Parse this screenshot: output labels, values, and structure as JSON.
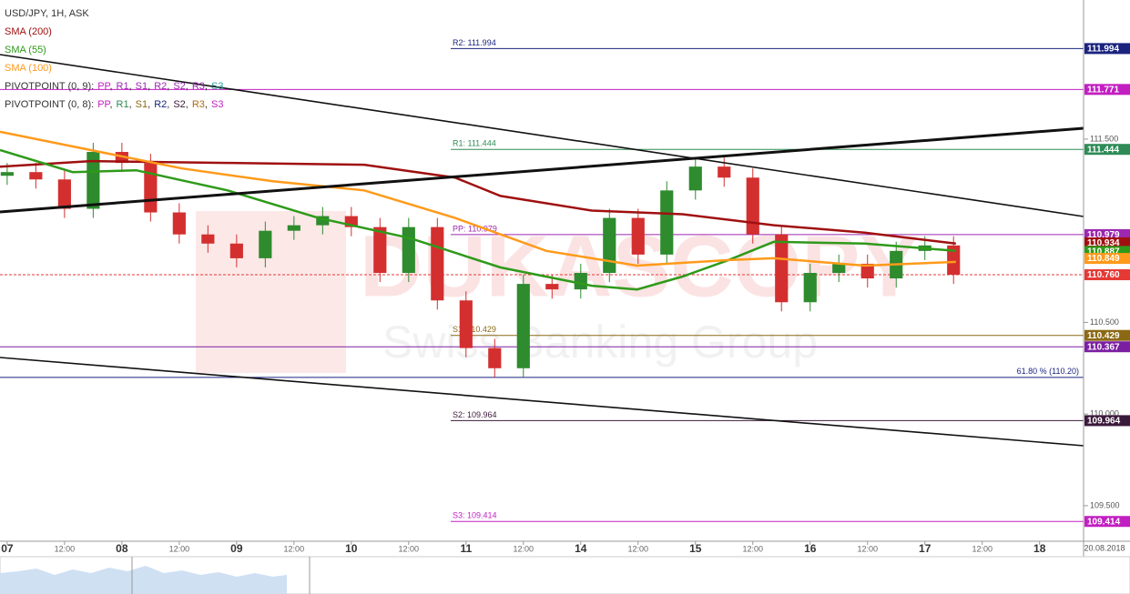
{
  "chart_data": {
    "type": "candlestick",
    "title": "USD/JPY, 1H, ASK",
    "watermark": {
      "brand": "DUKASCOPY",
      "tagline": "Swiss Banking Group"
    },
    "x": [
      0,
      6,
      12,
      18,
      24,
      30,
      36,
      42,
      48,
      54,
      60,
      66,
      72,
      78,
      84,
      90,
      96,
      102,
      108,
      114,
      120,
      126,
      132,
      138,
      144,
      150,
      156,
      162,
      168,
      174,
      180,
      186,
      192,
      198
    ],
    "open": [
      111.3,
      111.32,
      111.28,
      111.12,
      111.43,
      111.37,
      111.1,
      110.98,
      110.93,
      110.85,
      111.0,
      111.03,
      111.08,
      111.02,
      110.77,
      111.02,
      110.62,
      110.36,
      110.25,
      110.71,
      110.68,
      110.77,
      111.07,
      110.87,
      111.22,
      111.35,
      111.29,
      110.98,
      110.61,
      110.77,
      110.82,
      110.74,
      110.89,
      110.92
    ],
    "high": [
      111.37,
      111.37,
      111.33,
      111.48,
      111.48,
      111.42,
      111.15,
      111.03,
      110.98,
      111.05,
      111.08,
      111.13,
      111.13,
      111.07,
      111.07,
      111.07,
      110.67,
      110.41,
      110.76,
      110.76,
      110.82,
      111.12,
      111.12,
      111.27,
      111.4,
      111.4,
      111.34,
      111.03,
      110.82,
      110.87,
      110.87,
      110.94,
      110.97,
      110.97
    ],
    "low": [
      111.25,
      111.23,
      111.07,
      111.07,
      111.32,
      111.05,
      110.93,
      110.88,
      110.8,
      110.8,
      110.95,
      110.98,
      110.97,
      110.72,
      110.72,
      110.57,
      110.31,
      110.2,
      110.2,
      110.63,
      110.63,
      110.72,
      110.82,
      110.82,
      111.17,
      111.24,
      110.93,
      110.56,
      110.56,
      110.72,
      110.69,
      110.69,
      110.84,
      110.71
    ],
    "close": [
      111.32,
      111.28,
      111.12,
      111.43,
      111.37,
      111.1,
      110.98,
      110.93,
      110.85,
      111.0,
      111.03,
      111.08,
      111.02,
      110.77,
      111.02,
      110.62,
      110.36,
      110.25,
      110.71,
      110.68,
      110.77,
      111.07,
      110.87,
      111.22,
      111.35,
      111.29,
      110.98,
      110.61,
      110.77,
      110.82,
      110.74,
      110.89,
      110.92,
      110.76
    ],
    "up_color": "#2e8b2e",
    "down_color": "#d32f2f",
    "series": [
      {
        "name": "SMA (200)",
        "color": "#a01010",
        "tag": 110.934,
        "x": [
          -1.5,
          17.5,
          46.1,
          74.7,
          93.7,
          103.2,
          122.3,
          141.3,
          160.4,
          179.4,
          198.5
        ],
        "values": [
          111.35,
          111.38,
          111.37,
          111.36,
          111.29,
          111.19,
          111.11,
          111.09,
          111.03,
          110.99,
          110.93
        ]
      },
      {
        "name": "SMA (55)",
        "color": "#2e9a1a",
        "tag": 110.887,
        "x": [
          -1.5,
          13.7,
          27,
          46.1,
          65.1,
          84.2,
          103.2,
          122.3,
          131.8,
          141.3,
          150.9,
          160.4,
          179.4,
          198.5
        ],
        "values": [
          111.44,
          111.32,
          111.33,
          111.22,
          111.07,
          110.96,
          110.8,
          110.7,
          110.68,
          110.75,
          110.84,
          110.94,
          110.93,
          110.89
        ]
      },
      {
        "name": "SMA (100)",
        "color": "#ff9a1a",
        "tag": 110.849,
        "x": [
          -1.5,
          17.5,
          36.6,
          55.6,
          74.7,
          93.7,
          112.8,
          131.8,
          150.9,
          160.4,
          179.4,
          198.5
        ],
        "values": [
          111.54,
          111.44,
          111.34,
          111.27,
          111.22,
          111.07,
          110.89,
          110.81,
          110.84,
          110.85,
          110.81,
          110.83
        ]
      }
    ],
    "pivot_sets": [
      {
        "name": "PIVOTPOINT (0, 9):",
        "separator": ",",
        "items": [
          {
            "text": "PP",
            "color": "#c21fc2"
          },
          {
            "text": "R1",
            "color": "#9c27b0"
          },
          {
            "text": "S1",
            "color": "#9c27b0"
          },
          {
            "text": "R2",
            "color": "#9c27b0"
          },
          {
            "text": "S2",
            "color": "#9c27b0"
          },
          {
            "text": "R3",
            "color": "#9c27b0"
          },
          {
            "text": "S3",
            "color": "#2a9d9d"
          }
        ]
      },
      {
        "name": "PIVOTPOINT (0, 8):",
        "separator": ",",
        "items": [
          {
            "text": "PP",
            "color": "#c21fc2"
          },
          {
            "text": "R1",
            "color": "#2e8b57"
          },
          {
            "text": "S1",
            "color": "#8b6914"
          },
          {
            "text": "R2",
            "color": "#1a237e"
          },
          {
            "text": "S2",
            "color": "#3a1a3a"
          },
          {
            "text": "R3",
            "color": "#b06a10"
          },
          {
            "text": "S3",
            "color": "#c21fc2"
          }
        ]
      }
    ],
    "pivots": [
      {
        "label": "R2: 111.994",
        "value": 111.994,
        "color": "#1a237e"
      },
      {
        "label": "R1: 111.444",
        "value": 111.444,
        "color": "#2e8b57"
      },
      {
        "label": "PP: 110.979",
        "value": 110.979,
        "color": "#9c27b0"
      },
      {
        "label": "S1: 110.429",
        "value": 110.429,
        "color": "#8b6914"
      },
      {
        "label": "S2: 109.964",
        "value": 109.964,
        "color": "#3a1a3a"
      },
      {
        "label": "S3: 109.414",
        "value": 109.414,
        "color": "#c21fc2"
      }
    ],
    "levels": [
      {
        "value": 111.771,
        "color": "#c21fc2"
      },
      {
        "value": 110.367,
        "color": "#7b1fa2"
      }
    ],
    "current_price": {
      "value": 110.76,
      "label": "110.760",
      "color": "#e53935"
    },
    "fibonacci": {
      "label": "61.80 % (110.20)",
      "value": 110.2,
      "color": "#1a237e"
    },
    "xlim": [
      -1.5,
      225.2
    ],
    "ylim": [
      109.306,
      112.259
    ],
    "xticks": [
      {
        "value": 0,
        "label": "07"
      },
      {
        "value": 12,
        "label": "12:00"
      },
      {
        "value": 24,
        "label": "08"
      },
      {
        "value": 36,
        "label": "12:00"
      },
      {
        "value": 48,
        "label": "09"
      },
      {
        "value": 60,
        "label": "12:00"
      },
      {
        "value": 72,
        "label": "10"
      },
      {
        "value": 84,
        "label": "12:00"
      },
      {
        "value": 96,
        "label": "11"
      },
      {
        "value": 108,
        "label": "12:00"
      },
      {
        "value": 120,
        "label": "14"
      },
      {
        "value": 132,
        "label": "12:00"
      },
      {
        "value": 144,
        "label": "15"
      },
      {
        "value": 156,
        "label": "12:00"
      },
      {
        "value": 168,
        "label": "16"
      },
      {
        "value": 180,
        "label": "12:00"
      },
      {
        "value": 192,
        "label": "17"
      },
      {
        "value": 204,
        "label": "12:00"
      },
      {
        "value": 216,
        "label": "18"
      }
    ],
    "date_label": "20.08.2018",
    "yticks": [
      {
        "value": 111.5,
        "label": "111.500"
      },
      {
        "value": 110.5,
        "label": "110.500"
      },
      {
        "value": 110.0,
        "label": "110.000"
      },
      {
        "value": 109.5,
        "label": "109.500"
      }
    ]
  }
}
